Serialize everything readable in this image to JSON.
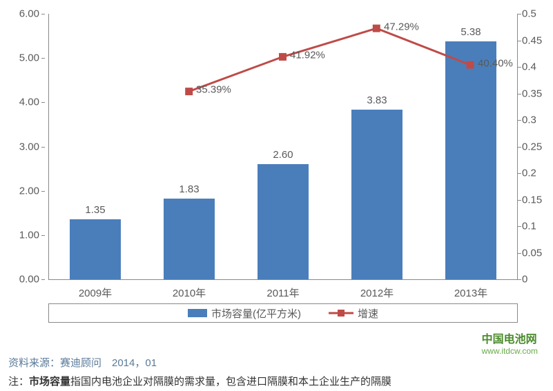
{
  "chart": {
    "type": "bar+line",
    "categories": [
      "2009年",
      "2010年",
      "2011年",
      "2012年",
      "2013年"
    ],
    "bars": {
      "label": "市场容量(亿平方米)",
      "values": [
        1.35,
        1.83,
        2.6,
        3.83,
        5.38
      ],
      "color": "#4A7EBB",
      "bar_width_frac": 0.55,
      "y_axis": "left",
      "value_labels": [
        "1.35",
        "1.83",
        "2.60",
        "3.83",
        "5.38"
      ]
    },
    "line": {
      "label": "增速",
      "values": [
        null,
        0.3539,
        0.4192,
        0.4729,
        0.404
      ],
      "value_labels": [
        null,
        "35.39%",
        "41.92%",
        "47.29%",
        "40.40%"
      ],
      "color": "#BE4B48",
      "marker_size": 10,
      "line_width": 3,
      "y_axis": "right"
    },
    "y_left": {
      "min": 0,
      "max": 6,
      "step": 1,
      "tick_labels": [
        "0.00",
        "1.00",
        "2.00",
        "3.00",
        "4.00",
        "5.00",
        "6.00"
      ]
    },
    "y_right": {
      "min": 0,
      "max": 0.5,
      "step": 0.05,
      "tick_labels": [
        "0",
        "0.05",
        "0.1",
        "0.15",
        "0.2",
        "0.25",
        "0.3",
        "0.35",
        "0.4",
        "0.45",
        "0.5"
      ]
    },
    "background_color": "#ffffff",
    "axis_color": "#888888",
    "text_color": "#595959",
    "label_fontsize": 15
  },
  "watermark": {
    "main": "中国电池网",
    "sub": "www.itdcw.com"
  },
  "source": "资料来源：赛迪顾问　2014，01",
  "note_prefix": "注：",
  "note_bold": "市场容量",
  "note_rest": "指国内电池企业对隔膜的需求量，包含进口隔膜和本土企业生产的隔膜"
}
